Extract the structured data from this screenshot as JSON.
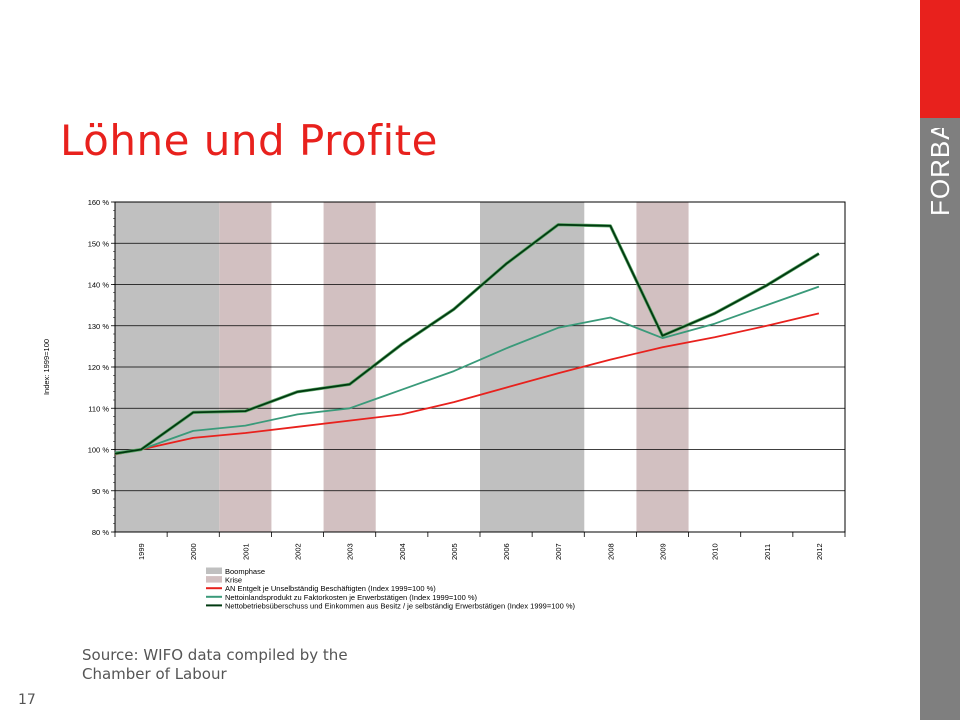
{
  "slide": {
    "title": "Löhne und Profite",
    "source": "Source: WIFO data compiled by the Chamber of Labour",
    "page_number": "17",
    "logo_text": "FORBA"
  },
  "colors": {
    "accent_red": "#e8211d",
    "side_gray": "#7f7f7f",
    "boom": "#c0c0c0",
    "krise": "#d2c0c1",
    "wages": "#e8211d",
    "nni": "#3a9a7a",
    "profits": "#003a10"
  },
  "chart_data": {
    "type": "line",
    "ylabel": "Index: 1999=100",
    "ylim": [
      80,
      160
    ],
    "yticks": [
      "80 %",
      "90 %",
      "100 %",
      "110 %",
      "120 %",
      "130 %",
      "140 %",
      "150 %",
      "160 %"
    ],
    "ytick_values": [
      80,
      90,
      100,
      110,
      120,
      130,
      140,
      150,
      160
    ],
    "categories": [
      "1999",
      "2000",
      "2001",
      "2002",
      "2003",
      "2004",
      "2005",
      "2006",
      "2007",
      "2008",
      "2009",
      "2010",
      "2011",
      "2012"
    ],
    "x_start": 1998.5,
    "x_end": 2012.5,
    "grid": true,
    "legend_position": "bottom",
    "periods": [
      {
        "name": "Boomphase",
        "start": 1998.5,
        "end": 2000.5,
        "color": "#c0c0c0"
      },
      {
        "name": "Krise",
        "start": 2000.5,
        "end": 2001.5,
        "color": "#d2c0c1"
      },
      {
        "name": "Krise",
        "start": 2002.5,
        "end": 2003.5,
        "color": "#d2c0c1"
      },
      {
        "name": "Boomphase",
        "start": 2005.5,
        "end": 2007.5,
        "color": "#c0c0c0"
      },
      {
        "name": "Krise",
        "start": 2008.5,
        "end": 2009.5,
        "color": "#d2c0c1"
      }
    ],
    "series": [
      {
        "name": "AN Entgelt je Unselbständig Beschäftigten (Index 1999=100 %)",
        "color": "#e8211d",
        "x": [
          1998.5,
          1999,
          2000,
          2001,
          2002,
          2003,
          2004,
          2005,
          2006,
          2007,
          2008,
          2009,
          2010,
          2011,
          2012
        ],
        "values": [
          98.8,
          100,
          102.8,
          104,
          105.5,
          107,
          108.5,
          111.5,
          115,
          118.5,
          121.8,
          124.8,
          127.2,
          130,
          133
        ]
      },
      {
        "name": "Nettoinlandsprodukt zu Faktorkosten je Erwerbstätigen (Index 1999=100 %)",
        "color": "#3a9a7a",
        "x": [
          1998.5,
          1999,
          2000,
          2001,
          2002,
          2003,
          2004,
          2005,
          2006,
          2007,
          2008,
          2009,
          2010,
          2011,
          2012
        ],
        "values": [
          99.3,
          100,
          104.5,
          105.8,
          108.5,
          110,
          114.5,
          119,
          124.5,
          129.5,
          132,
          127,
          130.5,
          135,
          139.5
        ]
      },
      {
        "name": "Nettobetriebsüberschuss und Einkommen aus Besitz / je selbständig Erwerbstätigen (Index 1999=100 %)",
        "color": "#003a10",
        "x": [
          1998.5,
          1999,
          2000,
          2001,
          2002,
          2003,
          2004,
          2005,
          2006,
          2007,
          2008,
          2009,
          2010,
          2011,
          2012
        ],
        "values": [
          99,
          100,
          109,
          109.3,
          114,
          115.8,
          125.5,
          134,
          145,
          154.5,
          154.2,
          127.6,
          133,
          139.8,
          147.5
        ]
      }
    ],
    "legend": [
      {
        "label": "Boomphase",
        "kind": "box",
        "color": "#c0c0c0"
      },
      {
        "label": "Krise",
        "kind": "box",
        "color": "#d2c0c1"
      },
      {
        "label": "AN Entgelt je Unselbständig Beschäftigten (Index 1999=100 %)",
        "kind": "line",
        "color": "#e8211d"
      },
      {
        "label": "Nettoinlandsprodukt zu Faktorkosten je Erwerbstätigen (Index 1999=100 %)",
        "kind": "line",
        "color": "#3a9a7a"
      },
      {
        "label": "Nettobetriebsüberschuss und Einkommen aus Besitz / je selbständig Erwerbstätigen (Index 1999=100 %)",
        "kind": "line",
        "color": "#003a10"
      }
    ]
  }
}
